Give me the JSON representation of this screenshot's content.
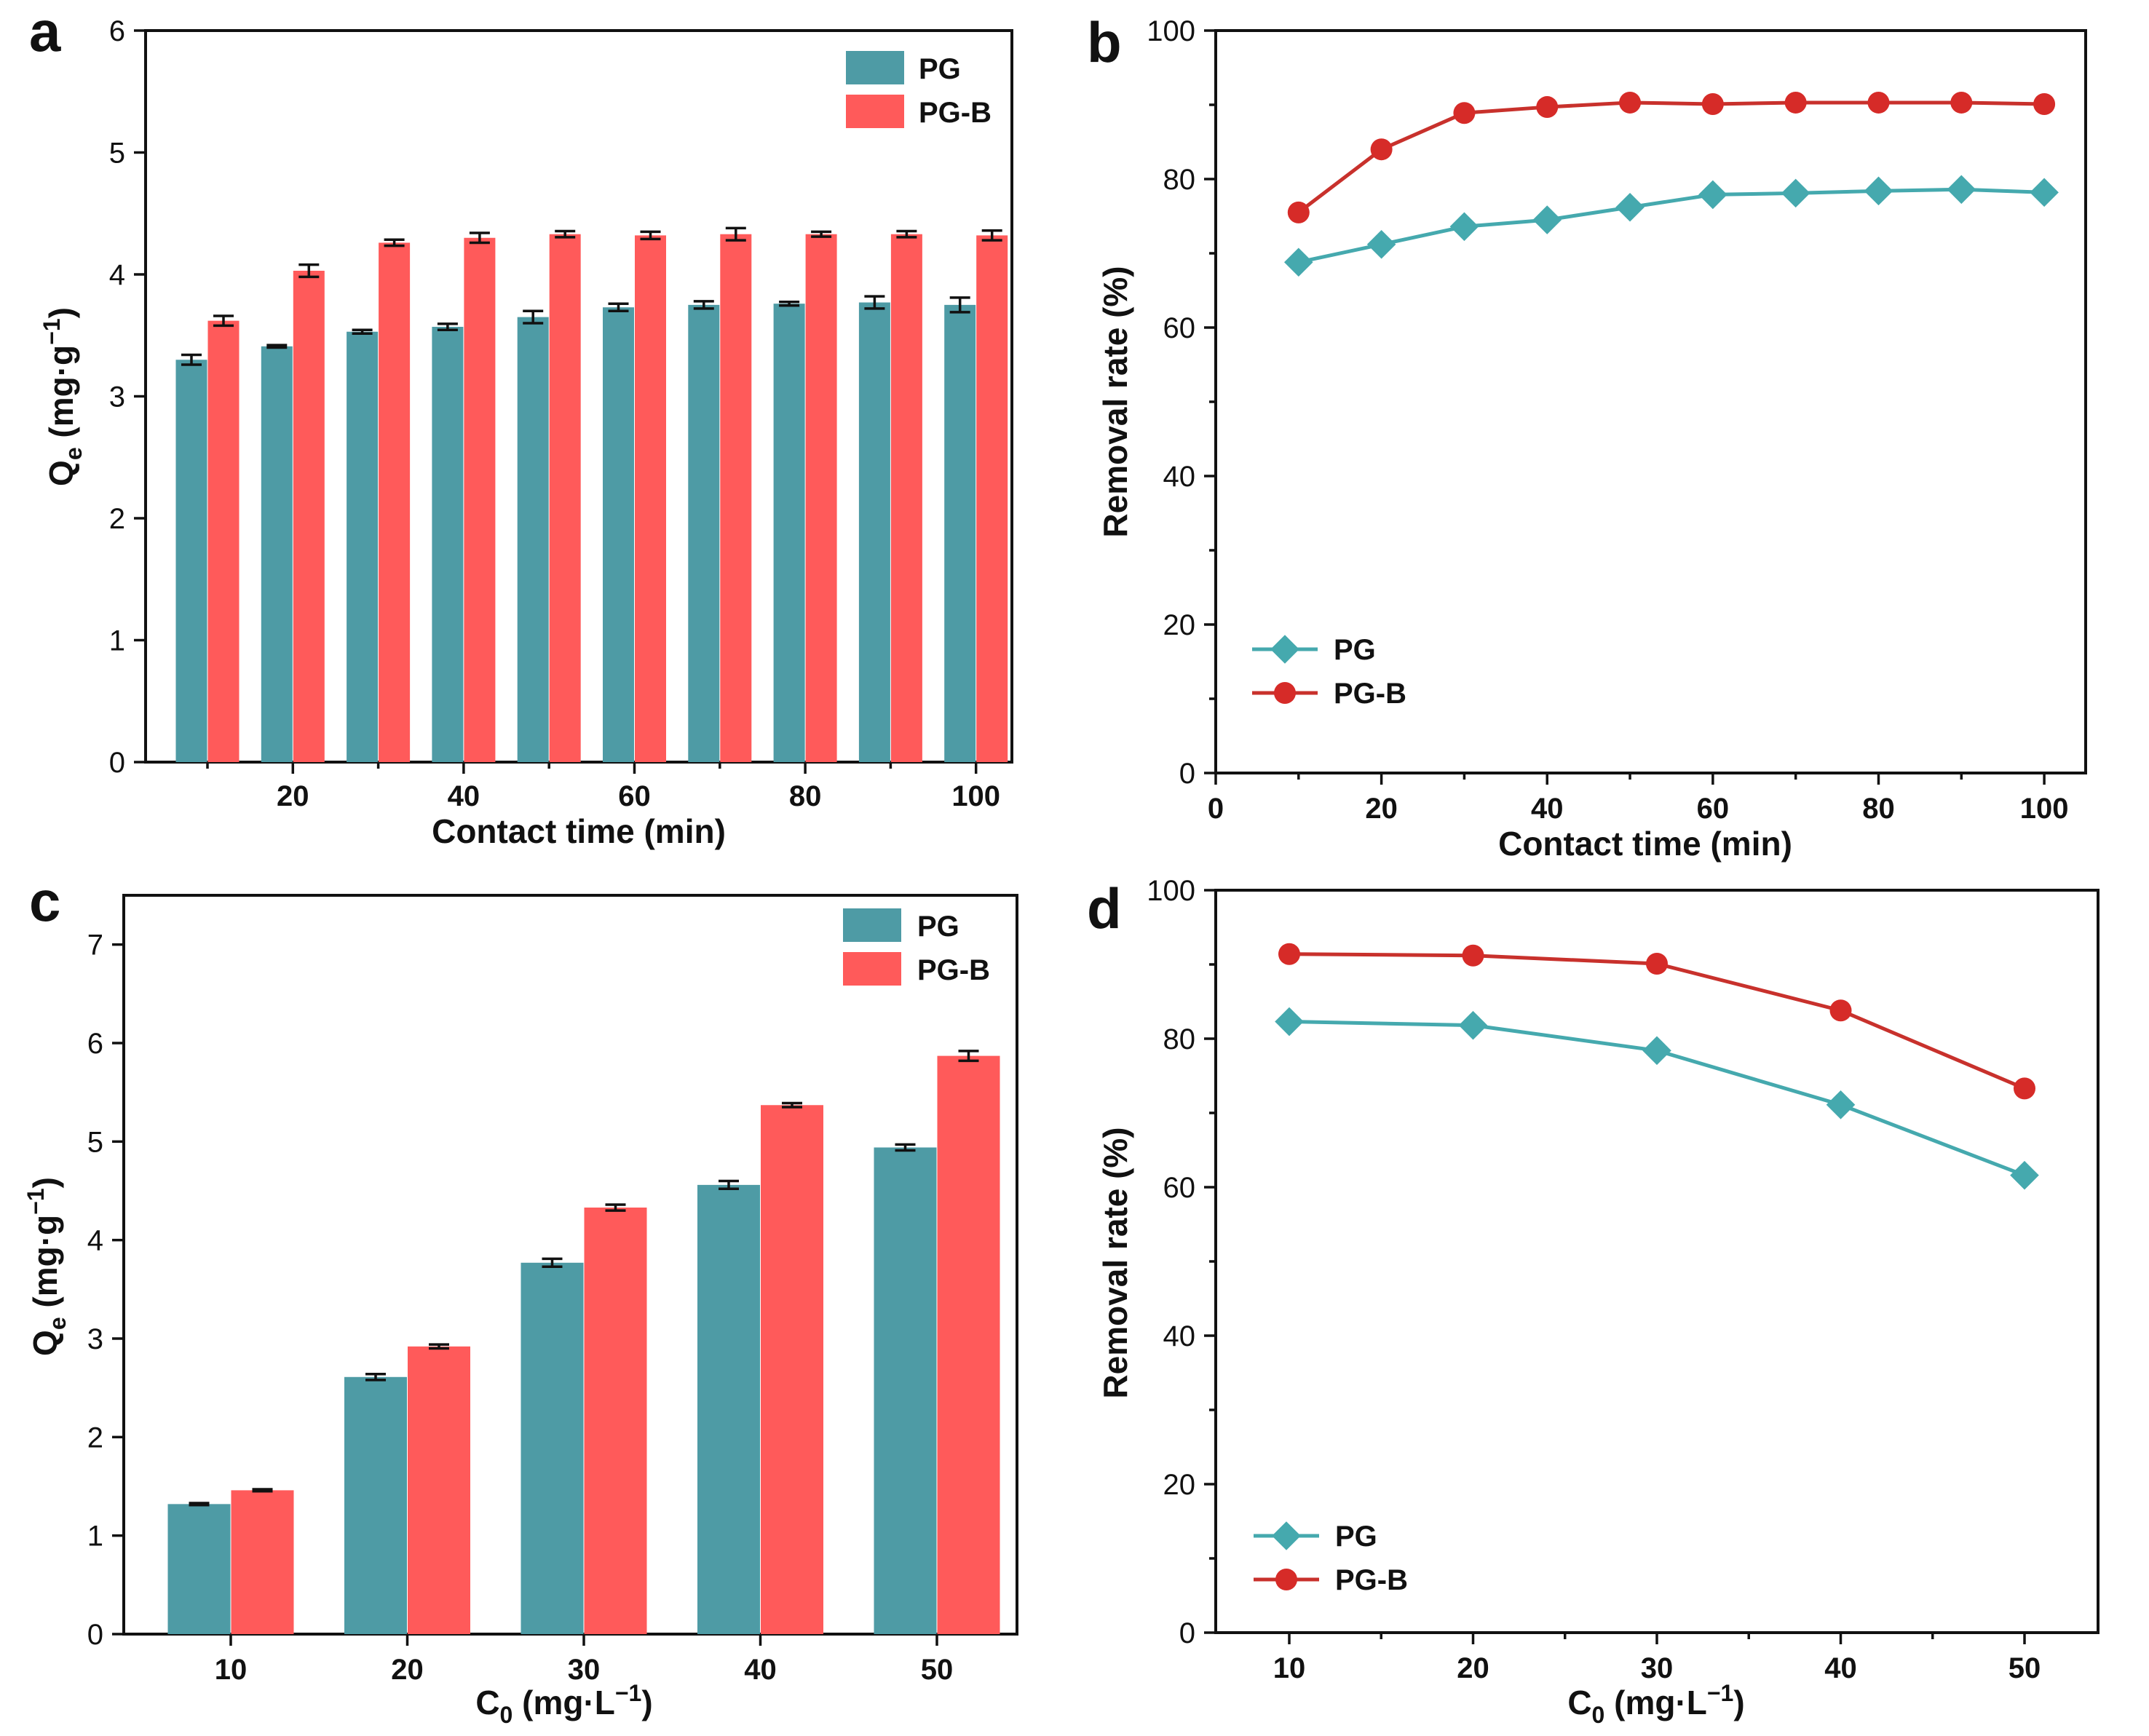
{
  "colors": {
    "pg_bar": "#4e9ba5",
    "pgb_bar": "#ff5a5a",
    "pg_line": "#45a9ae",
    "pgb_line": "#c8312c",
    "pgb_marker": "#d62b28"
  },
  "panels": [
    {
      "id": "a",
      "label": "a"
    },
    {
      "id": "b",
      "label": "b"
    },
    {
      "id": "c",
      "label": "c"
    },
    {
      "id": "d",
      "label": "d"
    }
  ],
  "chart_data": [
    {
      "panel": "a",
      "type": "bar",
      "xlabel": "Contact time (min)",
      "ylabel_main": "Q",
      "ylabel_sub": "e",
      "ylabel_unit": " (mg·g",
      "ylabel_sup": "−1",
      "ylabel_close": ")",
      "ylim": [
        0,
        6
      ],
      "yticks": [
        "0",
        "1",
        "2",
        "3",
        "4",
        "5",
        "6"
      ],
      "categories": [
        "10",
        "20",
        "30",
        "40",
        "50",
        "60",
        "70",
        "80",
        "90",
        "100"
      ],
      "xtick_labels": [
        "20",
        "40",
        "60",
        "80",
        "100"
      ],
      "legend": [
        "PG",
        "PG-B"
      ],
      "series": [
        {
          "name": "PG",
          "values": [
            3.3,
            3.41,
            3.53,
            3.57,
            3.65,
            3.73,
            3.75,
            3.76,
            3.77,
            3.75
          ],
          "errors": [
            0.04,
            0.01,
            0.015,
            0.025,
            0.05,
            0.03,
            0.03,
            0.015,
            0.05,
            0.06
          ]
        },
        {
          "name": "PG-B",
          "values": [
            3.62,
            4.03,
            4.26,
            4.3,
            4.33,
            4.32,
            4.33,
            4.33,
            4.33,
            4.32
          ],
          "errors": [
            0.04,
            0.05,
            0.025,
            0.04,
            0.025,
            0.03,
            0.05,
            0.02,
            0.025,
            0.04
          ]
        }
      ]
    },
    {
      "panel": "b",
      "type": "line",
      "xlabel": "Contact time (min)",
      "ylabel": "Removal rate (%)",
      "xlim": [
        0,
        105
      ],
      "ylim": [
        0,
        100
      ],
      "xticks": [
        "0",
        "20",
        "40",
        "60",
        "80",
        "100"
      ],
      "yticks": [
        "0",
        "20",
        "40",
        "60",
        "80",
        "100"
      ],
      "x": [
        10,
        20,
        30,
        40,
        50,
        60,
        70,
        80,
        90,
        100
      ],
      "legend": [
        "PG",
        "PG-B"
      ],
      "series": [
        {
          "name": "PG",
          "values": [
            68.8,
            71.2,
            73.6,
            74.5,
            76.2,
            77.9,
            78.1,
            78.4,
            78.6,
            78.2
          ]
        },
        {
          "name": "PG-B",
          "values": [
            75.5,
            84.0,
            88.9,
            89.7,
            90.3,
            90.1,
            90.3,
            90.3,
            90.3,
            90.1
          ]
        }
      ]
    },
    {
      "panel": "c",
      "type": "bar",
      "xlabel_main": "C",
      "xlabel_sub": "0",
      "xlabel_unit": " (mg·L",
      "xlabel_sup": "−1",
      "xlabel_close": ")",
      "ylabel_main": "Q",
      "ylabel_sub": "e",
      "ylabel_unit": " (mg·g",
      "ylabel_sup": "−1",
      "ylabel_close": ")",
      "ylim": [
        0,
        7.5
      ],
      "yticks": [
        "0",
        "1",
        "2",
        "3",
        "4",
        "5",
        "6",
        "7"
      ],
      "categories": [
        "10",
        "20",
        "30",
        "40",
        "50"
      ],
      "legend": [
        "PG",
        "PG-B"
      ],
      "series": [
        {
          "name": "PG",
          "values": [
            1.32,
            2.61,
            3.77,
            4.56,
            4.94
          ],
          "errors": [
            0.01,
            0.03,
            0.04,
            0.04,
            0.03
          ]
        },
        {
          "name": "PG-B",
          "values": [
            1.46,
            2.92,
            4.33,
            5.37,
            5.87
          ],
          "errors": [
            0.01,
            0.02,
            0.03,
            0.02,
            0.05
          ]
        }
      ]
    },
    {
      "panel": "d",
      "type": "line",
      "xlabel_main": "C",
      "xlabel_sub": "0",
      "xlabel_unit": " (mg·L",
      "xlabel_sup": "−1",
      "xlabel_close": ")",
      "ylabel": "Removal rate (%)",
      "xlim": [
        6,
        54
      ],
      "ylim": [
        0,
        100
      ],
      "xticks": [
        "10",
        "20",
        "30",
        "40",
        "50"
      ],
      "yticks": [
        "0",
        "20",
        "40",
        "60",
        "80",
        "100"
      ],
      "x": [
        10,
        20,
        30,
        40,
        50
      ],
      "legend": [
        "PG",
        "PG-B"
      ],
      "series": [
        {
          "name": "PG",
          "values": [
            82.3,
            81.8,
            78.4,
            71.1,
            61.6
          ]
        },
        {
          "name": "PG-B",
          "values": [
            91.4,
            91.2,
            90.1,
            83.8,
            73.3
          ]
        }
      ]
    }
  ]
}
